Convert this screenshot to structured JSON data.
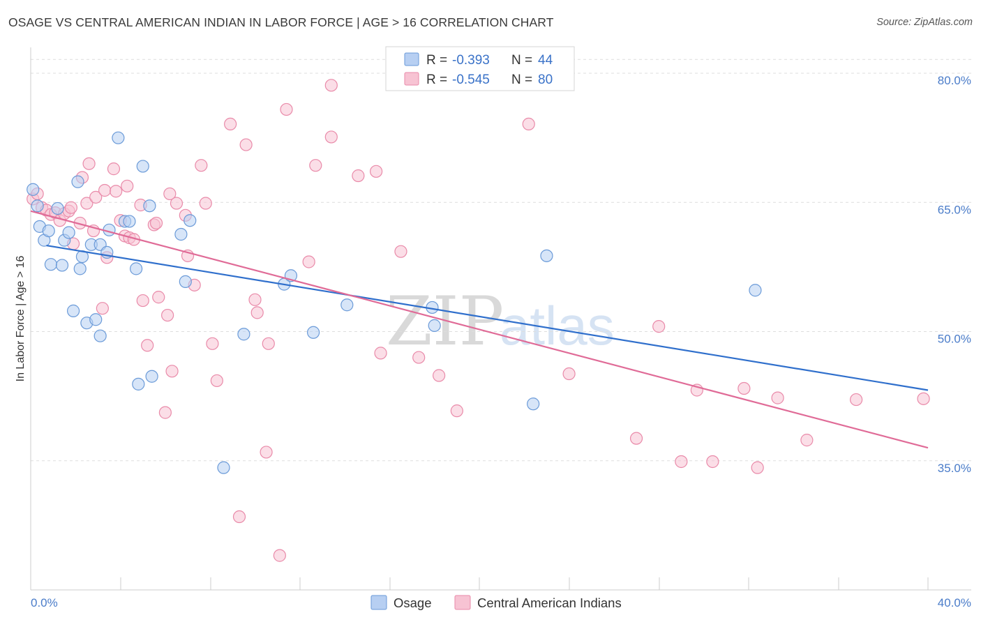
{
  "title": "OSAGE VS CENTRAL AMERICAN INDIAN IN LABOR FORCE | AGE > 16 CORRELATION CHART",
  "source": "Source: ZipAtlas.com",
  "watermark": {
    "zip": "ZIP",
    "atlas": "atlas"
  },
  "colors": {
    "osage_fill": "#b7cff2",
    "osage_stroke": "#6a9ad8",
    "osage_line": "#2f6fcc",
    "cai_fill": "#f7c3d3",
    "cai_stroke": "#e98aa9",
    "cai_line": "#e06b97",
    "grid": "#dedede",
    "axis_text": "#4a7cc9"
  },
  "legend": {
    "rows": [
      {
        "r_label": "R =",
        "r_value": "-0.393",
        "n_label": "N =",
        "n_value": "44"
      },
      {
        "r_label": "R =",
        "r_value": "-0.545",
        "n_label": "N =",
        "n_value": "80"
      }
    ]
  },
  "chart_data": {
    "type": "scatter",
    "title": "OSAGE VS CENTRAL AMERICAN INDIAN IN LABOR FORCE | AGE > 16 CORRELATION CHART",
    "xlabel": "",
    "ylabel": "In Labor Force | Age > 16",
    "xlim": [
      0,
      40
    ],
    "ylim": [
      20,
      83
    ],
    "x_tick_labels": [
      "0.0%",
      "40.0%"
    ],
    "y_ticks": [
      35,
      50,
      65,
      80
    ],
    "y_tick_labels": [
      "35.0%",
      "50.0%",
      "65.0%",
      "80.0%"
    ],
    "grid": true,
    "legend_placement": "top-center",
    "series": [
      {
        "name": "Osage",
        "color": "#6a9ad8",
        "trend": {
          "x": [
            0.7,
            40
          ],
          "y": [
            60.0,
            43.2
          ]
        },
        "points": [
          [
            0.1,
            66.5
          ],
          [
            0.3,
            64.6
          ],
          [
            0.4,
            62.2
          ],
          [
            0.6,
            60.6
          ],
          [
            0.8,
            61.7
          ],
          [
            0.9,
            57.8
          ],
          [
            1.2,
            64.3
          ],
          [
            1.4,
            57.7
          ],
          [
            1.5,
            60.6
          ],
          [
            1.7,
            61.5
          ],
          [
            1.9,
            52.4
          ],
          [
            2.1,
            67.4
          ],
          [
            2.2,
            57.3
          ],
          [
            2.3,
            58.7
          ],
          [
            2.5,
            51.0
          ],
          [
            2.7,
            60.1
          ],
          [
            2.9,
            51.4
          ],
          [
            3.1,
            60.1
          ],
          [
            3.1,
            49.5
          ],
          [
            3.4,
            59.2
          ],
          [
            3.5,
            61.8
          ],
          [
            3.9,
            72.5
          ],
          [
            4.2,
            62.8
          ],
          [
            4.4,
            62.8
          ],
          [
            4.7,
            57.3
          ],
          [
            4.8,
            43.9
          ],
          [
            5.0,
            69.2
          ],
          [
            5.3,
            64.6
          ],
          [
            5.4,
            44.8
          ],
          [
            6.7,
            61.3
          ],
          [
            6.9,
            55.8
          ],
          [
            7.1,
            62.9
          ],
          [
            8.6,
            34.2
          ],
          [
            9.5,
            49.7
          ],
          [
            11.3,
            55.5
          ],
          [
            11.6,
            56.5
          ],
          [
            12.6,
            49.9
          ],
          [
            14.1,
            53.1
          ],
          [
            17.9,
            52.8
          ],
          [
            18.0,
            50.7
          ],
          [
            22.4,
            41.6
          ],
          [
            23.0,
            58.8
          ],
          [
            32.3,
            54.8
          ]
        ]
      },
      {
        "name": "Central American Indians",
        "color": "#e98aa9",
        "trend": {
          "x": [
            0,
            40
          ],
          "y": [
            64.0,
            36.5
          ]
        },
        "points": [
          [
            0.1,
            65.4
          ],
          [
            0.3,
            66.0
          ],
          [
            0.5,
            64.4
          ],
          [
            0.7,
            64.1
          ],
          [
            0.9,
            63.6
          ],
          [
            1.1,
            63.8
          ],
          [
            1.3,
            62.9
          ],
          [
            1.5,
            63.7
          ],
          [
            1.7,
            64.0
          ],
          [
            1.8,
            64.4
          ],
          [
            1.9,
            60.2
          ],
          [
            2.2,
            62.6
          ],
          [
            2.3,
            67.9
          ],
          [
            2.5,
            64.9
          ],
          [
            2.6,
            69.5
          ],
          [
            2.8,
            61.7
          ],
          [
            2.9,
            65.6
          ],
          [
            3.2,
            52.7
          ],
          [
            3.3,
            66.4
          ],
          [
            3.4,
            58.6
          ],
          [
            3.7,
            68.9
          ],
          [
            3.8,
            66.3
          ],
          [
            4.0,
            62.9
          ],
          [
            4.2,
            61.1
          ],
          [
            4.3,
            66.9
          ],
          [
            4.4,
            60.9
          ],
          [
            4.6,
            60.7
          ],
          [
            4.9,
            64.7
          ],
          [
            5.0,
            53.6
          ],
          [
            5.2,
            48.4
          ],
          [
            5.5,
            62.4
          ],
          [
            5.6,
            62.6
          ],
          [
            5.7,
            54.0
          ],
          [
            6.0,
            40.6
          ],
          [
            6.1,
            51.9
          ],
          [
            6.2,
            66.0
          ],
          [
            6.3,
            45.4
          ],
          [
            6.5,
            64.9
          ],
          [
            6.9,
            63.5
          ],
          [
            7.0,
            58.8
          ],
          [
            7.3,
            55.4
          ],
          [
            7.6,
            69.3
          ],
          [
            7.8,
            64.9
          ],
          [
            8.1,
            48.6
          ],
          [
            8.3,
            44.3
          ],
          [
            8.9,
            74.1
          ],
          [
            9.3,
            28.5
          ],
          [
            9.6,
            71.7
          ],
          [
            10.0,
            53.7
          ],
          [
            10.1,
            52.2
          ],
          [
            10.5,
            36.0
          ],
          [
            10.6,
            48.6
          ],
          [
            11.1,
            24.0
          ],
          [
            11.4,
            75.8
          ],
          [
            12.4,
            58.1
          ],
          [
            12.7,
            69.3
          ],
          [
            13.4,
            72.6
          ],
          [
            13.4,
            78.6
          ],
          [
            14.6,
            68.1
          ],
          [
            15.4,
            68.6
          ],
          [
            15.6,
            47.5
          ],
          [
            16.5,
            59.3
          ],
          [
            17.3,
            47.0
          ],
          [
            18.2,
            44.9
          ],
          [
            19.0,
            40.8
          ],
          [
            22.2,
            74.1
          ],
          [
            24.0,
            45.1
          ],
          [
            27.0,
            37.6
          ],
          [
            28.0,
            50.6
          ],
          [
            29.0,
            34.9
          ],
          [
            29.7,
            43.2
          ],
          [
            30.4,
            34.9
          ],
          [
            31.8,
            43.4
          ],
          [
            32.4,
            34.2
          ],
          [
            33.3,
            42.3
          ],
          [
            34.6,
            37.4
          ],
          [
            36.8,
            42.1
          ],
          [
            39.8,
            42.2
          ]
        ]
      }
    ]
  }
}
